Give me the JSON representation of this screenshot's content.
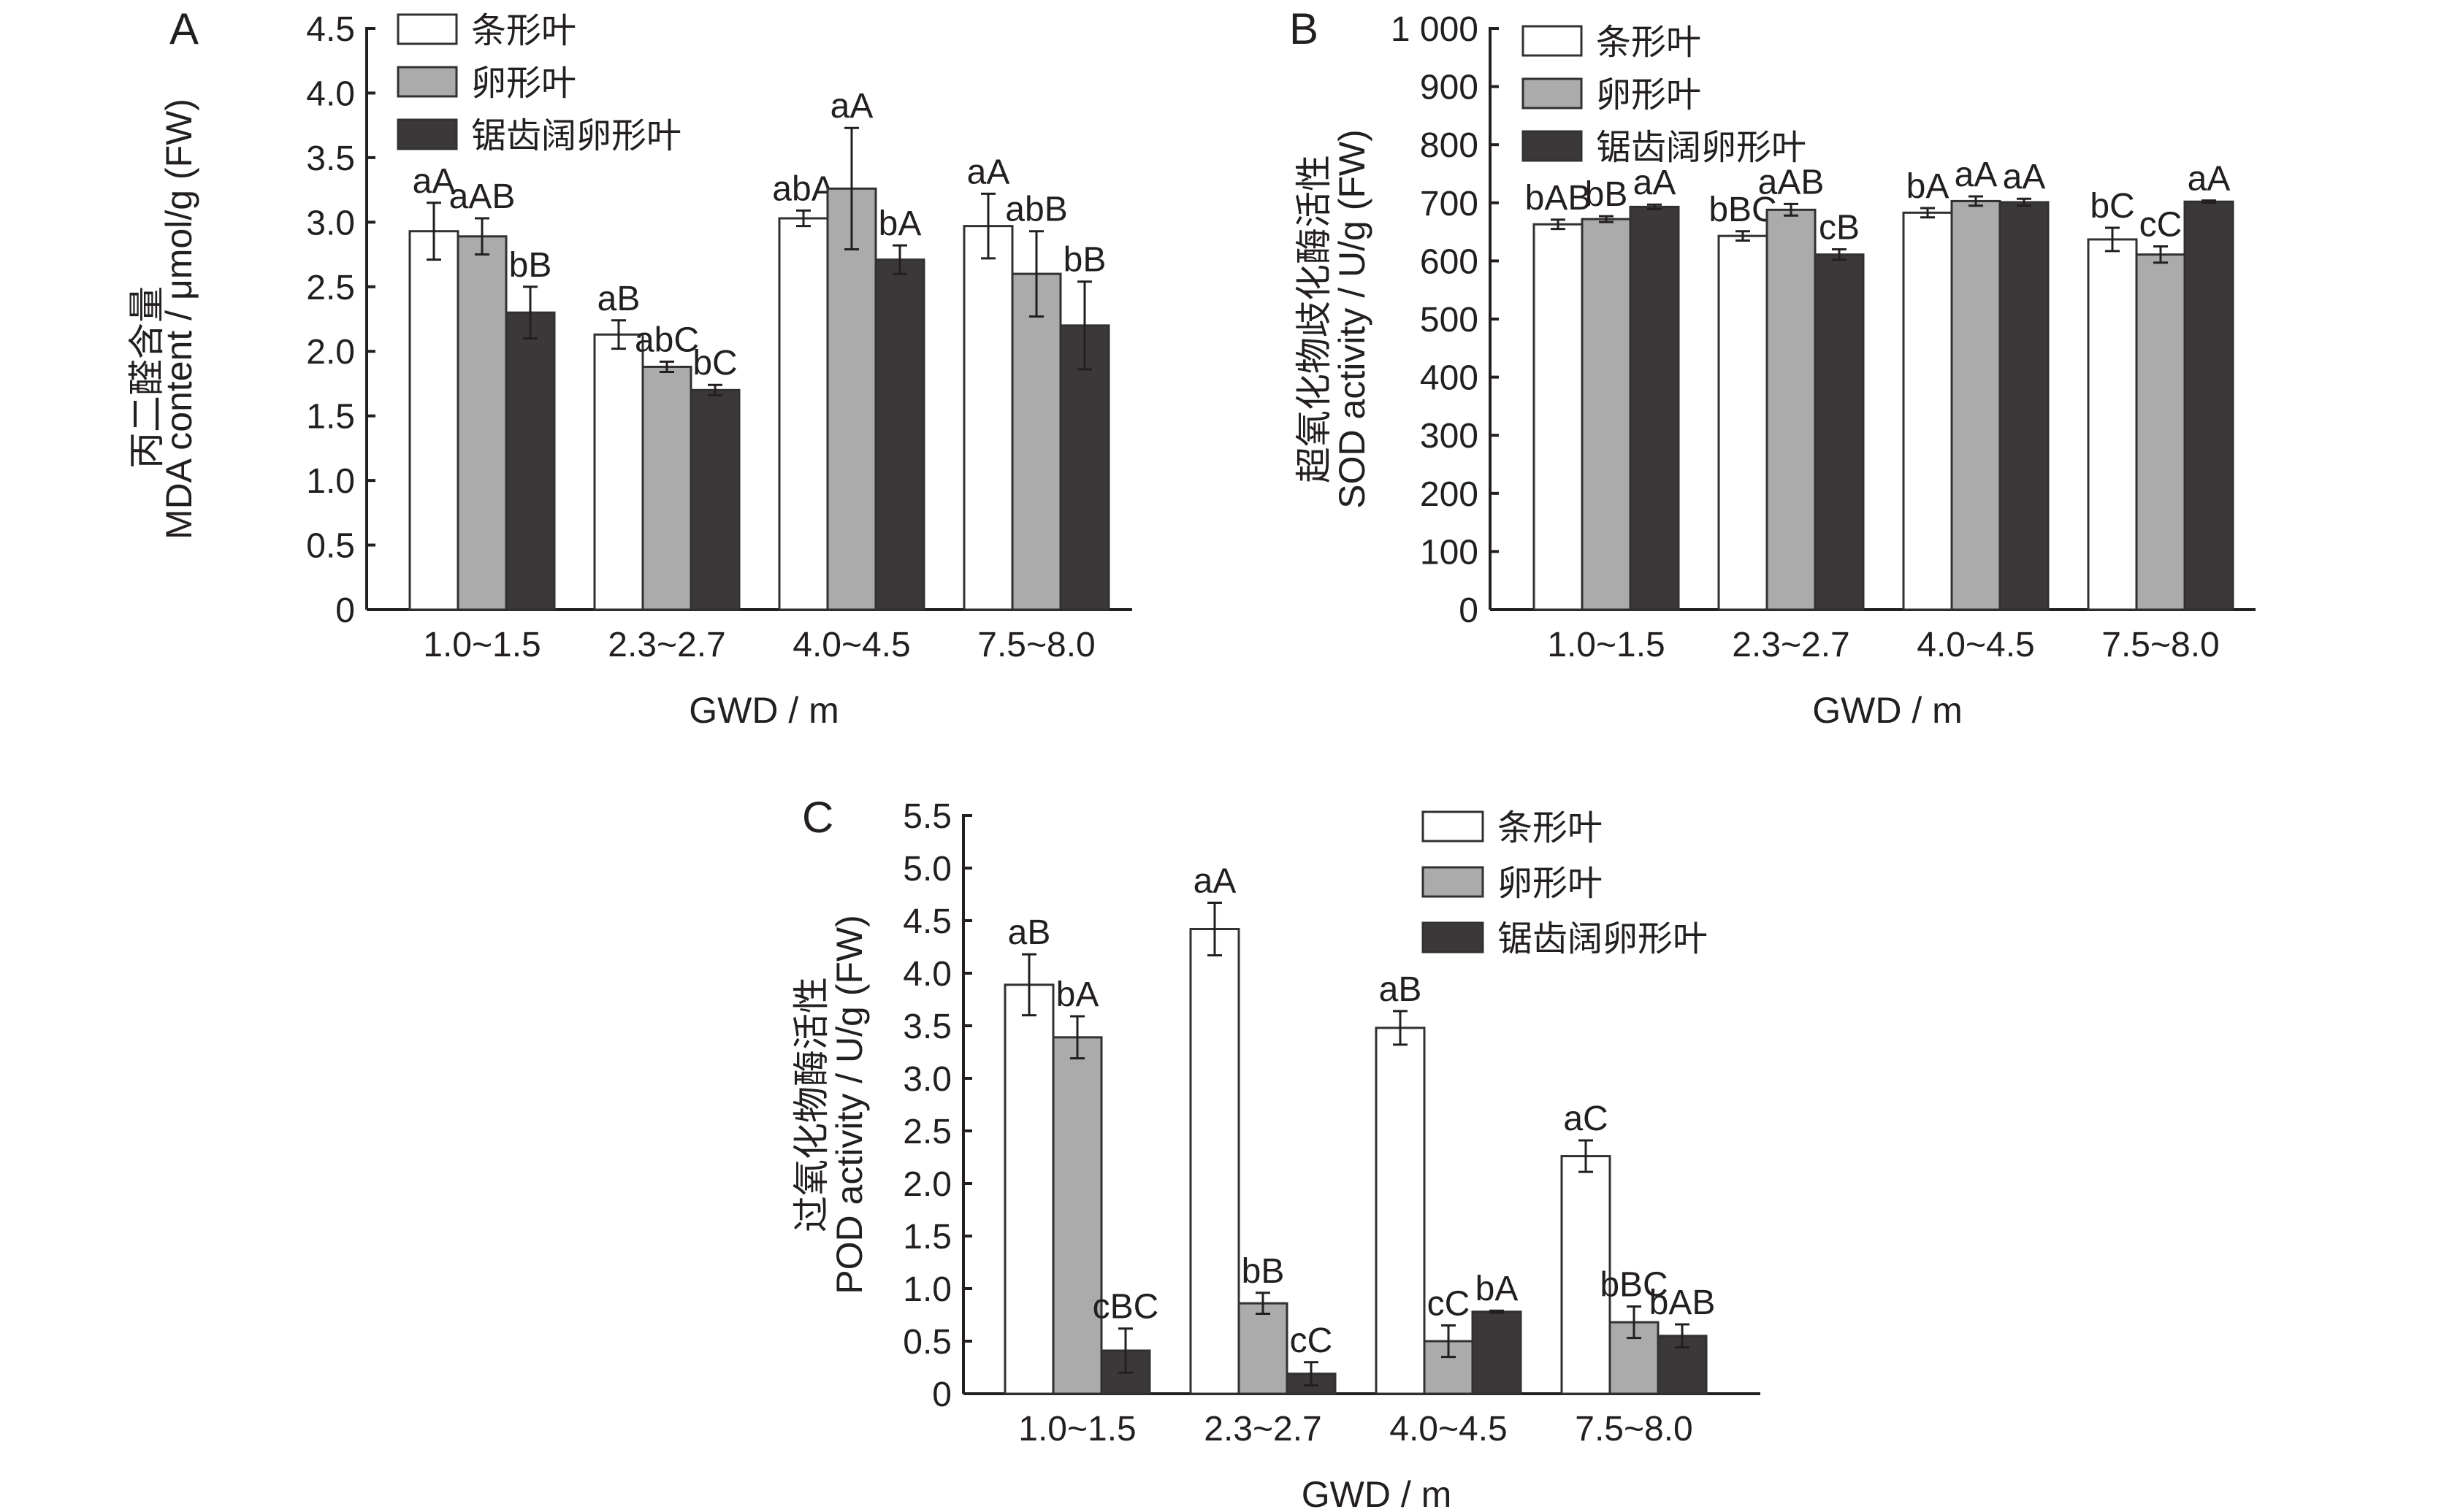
{
  "figure": {
    "legend": [
      {
        "label": "条形叶",
        "color": "#ffffff"
      },
      {
        "label": "卵形叶",
        "color": "#ababab"
      },
      {
        "label": "锯齿阔卵形叶",
        "color": "#3a3839"
      }
    ]
  },
  "chart_data": [
    {
      "panel": "A",
      "type": "bar",
      "title": "",
      "xlabel": "GWD / m",
      "ylabel_cn": "丙二醛含量",
      "ylabel": "MDA content / μmol/g (FW)",
      "categories": [
        "1.0~1.5",
        "2.3~2.7",
        "4.0~4.5",
        "7.5~8.0"
      ],
      "ylim": [
        0,
        4.5
      ],
      "yticks": [
        0,
        0.5,
        1.0,
        1.5,
        2.0,
        2.5,
        3.0,
        3.5,
        4.0,
        4.5
      ],
      "ytick_labels": [
        "0",
        "0.5",
        "1.0",
        "1.5",
        "2.0",
        "2.5",
        "3.0",
        "3.5",
        "4.0",
        "4.5"
      ],
      "legend_position": "top-left",
      "grid": false,
      "series": [
        {
          "name": "条形叶",
          "values": [
            2.93,
            2.13,
            3.03,
            2.97
          ],
          "errors": [
            0.22,
            0.11,
            0.06,
            0.25
          ],
          "labels": [
            "aA",
            "aB",
            "abA",
            "aA"
          ]
        },
        {
          "name": "卵形叶",
          "values": [
            2.89,
            1.88,
            3.26,
            2.6
          ],
          "errors": [
            0.14,
            0.04,
            0.47,
            0.33
          ],
          "labels": [
            "aAB",
            "abC",
            "aA",
            "abB"
          ]
        },
        {
          "name": "锯齿阔卵形叶",
          "values": [
            2.3,
            1.7,
            2.71,
            2.2
          ],
          "errors": [
            0.2,
            0.04,
            0.11,
            0.34
          ],
          "labels": [
            "bB",
            "bC",
            "bA",
            "bB"
          ]
        }
      ]
    },
    {
      "panel": "B",
      "type": "bar",
      "title": "",
      "xlabel": "GWD / m",
      "ylabel_cn": "超氧化物歧化酶活性",
      "ylabel": "SOD activity / U/g (FW)",
      "categories": [
        "1.0~1.5",
        "2.3~2.7",
        "4.0~4.5",
        "7.5~8.0"
      ],
      "ylim": [
        0,
        1000
      ],
      "yticks": [
        0,
        100,
        200,
        300,
        400,
        500,
        600,
        700,
        800,
        900,
        1000
      ],
      "ytick_labels": [
        "0",
        "100",
        "200",
        "300",
        "400",
        "500",
        "600",
        "700",
        "800",
        "900",
        "1 000"
      ],
      "legend_position": "top-left",
      "grid": false,
      "series": [
        {
          "name": "条形叶",
          "values": [
            663,
            643,
            683,
            637
          ],
          "errors": [
            8,
            8,
            8,
            20
          ],
          "labels": [
            "bAB",
            "bBC",
            "bA",
            "bC"
          ]
        },
        {
          "name": "卵形叶",
          "values": [
            672,
            688,
            703,
            611
          ],
          "errors": [
            5,
            10,
            8,
            14
          ],
          "labels": [
            "bB",
            "aAB",
            "aA",
            "cC"
          ]
        },
        {
          "name": "锯齿阔卵形叶",
          "values": [
            693,
            611,
            701,
            702
          ],
          "errors": [
            4,
            9,
            6,
            2
          ],
          "labels": [
            "aA",
            "cB",
            "aA",
            "aA"
          ]
        }
      ]
    },
    {
      "panel": "C",
      "type": "bar",
      "title": "",
      "xlabel": "GWD / m",
      "ylabel_cn": "过氧化物酶活性",
      "ylabel": "POD activity / U/g (FW)",
      "categories": [
        "1.0~1.5",
        "2.3~2.7",
        "4.0~4.5",
        "7.5~8.0"
      ],
      "ylim": [
        0,
        5.5
      ],
      "yticks": [
        0,
        0.5,
        1.0,
        1.5,
        2.0,
        2.5,
        3.0,
        3.5,
        4.0,
        4.5,
        5.0,
        5.5
      ],
      "ytick_labels": [
        "0",
        "0.5",
        "1.0",
        "1.5",
        "2.0",
        "2.5",
        "3.0",
        "3.5",
        "4.0",
        "4.5",
        "5.0",
        "5.5"
      ],
      "legend_position": "top-right",
      "grid": false,
      "series": [
        {
          "name": "条形叶",
          "values": [
            3.89,
            4.42,
            3.48,
            2.26
          ],
          "errors": [
            0.29,
            0.25,
            0.16,
            0.15
          ],
          "labels": [
            "aB",
            "aA",
            "aB",
            "aC"
          ]
        },
        {
          "name": "卵形叶",
          "values": [
            3.39,
            0.86,
            0.5,
            0.68
          ],
          "errors": [
            0.2,
            0.1,
            0.15,
            0.15
          ],
          "labels": [
            "bA",
            "bB",
            "cC",
            "bBC"
          ]
        },
        {
          "name": "锯齿阔卵形叶",
          "values": [
            0.41,
            0.19,
            0.78,
            0.55
          ],
          "errors": [
            0.21,
            0.11,
            0.01,
            0.11
          ],
          "labels": [
            "cBC",
            "cC",
            "bA",
            "bAB"
          ]
        }
      ]
    }
  ]
}
